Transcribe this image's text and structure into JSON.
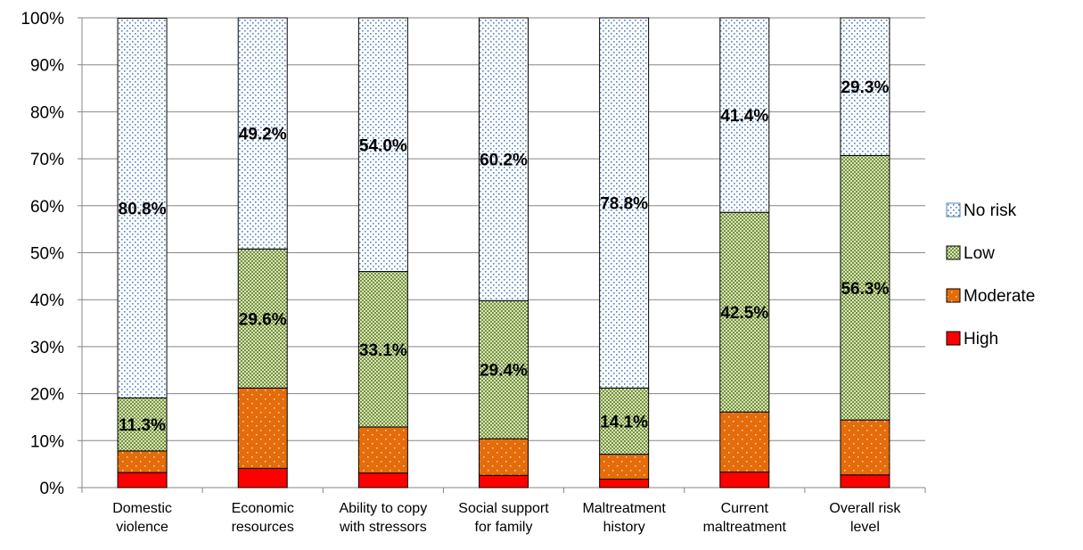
{
  "chart_data": {
    "type": "bar",
    "stacked": true,
    "percent": true,
    "categories": [
      [
        "Domestic",
        "violence"
      ],
      [
        "Economic",
        "resources"
      ],
      [
        "Ability to copy",
        "with stressors"
      ],
      [
        "Social support",
        "for family"
      ],
      [
        "Maltreatment",
        "history"
      ],
      [
        "Current",
        "maltreatment"
      ],
      [
        "Overall risk",
        "level"
      ]
    ],
    "series": [
      {
        "name": "High",
        "color": "#ff0000",
        "pattern": "none",
        "values": [
          3.2,
          4.1,
          3.1,
          2.6,
          1.8,
          3.3,
          2.7
        ]
      },
      {
        "name": "Moderate",
        "color": "#e46c0a",
        "pattern": "dots-light",
        "values": [
          4.6,
          17.1,
          9.8,
          7.8,
          5.3,
          12.8,
          11.7
        ]
      },
      {
        "name": "Low",
        "color": "#77933c",
        "pattern": "checker",
        "values": [
          11.3,
          29.6,
          33.1,
          29.4,
          14.1,
          42.5,
          56.3
        ]
      },
      {
        "name": "No risk",
        "color": "#4f81bd",
        "pattern": "dots-on-white",
        "values": [
          80.8,
          49.2,
          54.0,
          60.2,
          78.8,
          41.4,
          29.3
        ]
      }
    ],
    "data_labels": [
      {
        "category": 0,
        "series": "No risk",
        "text": "80.8%"
      },
      {
        "category": 0,
        "series": "Low",
        "text": "11.3%"
      },
      {
        "category": 1,
        "series": "No risk",
        "text": "49.2%"
      },
      {
        "category": 1,
        "series": "Low",
        "text": "29.6%"
      },
      {
        "category": 2,
        "series": "No risk",
        "text": "54.0%"
      },
      {
        "category": 2,
        "series": "Low",
        "text": "33.1%"
      },
      {
        "category": 3,
        "series": "No risk",
        "text": "60.2%"
      },
      {
        "category": 3,
        "series": "Low",
        "text": "29.4%"
      },
      {
        "category": 4,
        "series": "No risk",
        "text": "78.8%"
      },
      {
        "category": 4,
        "series": "Low",
        "text": "14.1%"
      },
      {
        "category": 5,
        "series": "No risk",
        "text": "41.4%"
      },
      {
        "category": 5,
        "series": "Low",
        "text": "42.5%"
      },
      {
        "category": 6,
        "series": "No risk",
        "text": "29.3%"
      },
      {
        "category": 6,
        "series": "Low",
        "text": "56.3%"
      }
    ],
    "y_ticks": [
      "0%",
      "10%",
      "20%",
      "30%",
      "40%",
      "50%",
      "60%",
      "70%",
      "80%",
      "90%",
      "100%"
    ],
    "ylim": [
      0,
      100
    ],
    "grid": true,
    "legend": {
      "position": "right",
      "order": [
        "No risk",
        "Low",
        "Moderate",
        "High"
      ]
    },
    "title": "",
    "xlabel": "",
    "ylabel": ""
  }
}
